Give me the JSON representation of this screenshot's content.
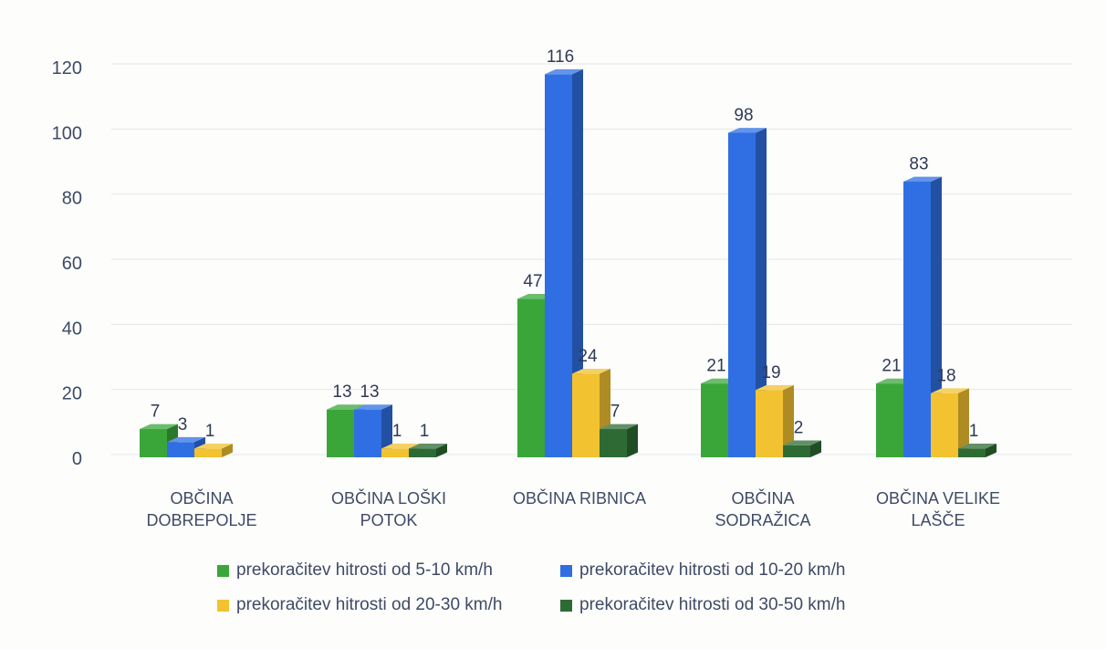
{
  "chart_data": {
    "type": "bar",
    "title": "",
    "xlabel": "",
    "ylabel": "",
    "ylim": [
      0,
      120
    ],
    "yticks": [
      0,
      20,
      40,
      60,
      80,
      100,
      120
    ],
    "grid": true,
    "legend_position": "bottom",
    "categories": [
      [
        "OBČINA",
        "DOBREPOLJE"
      ],
      [
        "OBČINA LOŠKI",
        "POTOK"
      ],
      [
        "OBČINA RIBNICA"
      ],
      [
        "OBČINA",
        "SODRAŽICA"
      ],
      [
        "OBČINA VELIKE",
        "LAŠČE"
      ]
    ],
    "series": [
      {
        "name": "prekoračitev hitrosti od 5-10 km/h",
        "color": "#3aa63a",
        "values": [
          7,
          13,
          47,
          21,
          21
        ]
      },
      {
        "name": "prekoračitev hitrosti od 10-20 km/h",
        "color": "#2f6fe3",
        "values": [
          3,
          13,
          116,
          98,
          83
        ]
      },
      {
        "name": "prekoračitev hitrosti od 20-30 km/h",
        "color": "#f2c230",
        "values": [
          1,
          1,
          24,
          19,
          18
        ]
      },
      {
        "name": "prekoračitev hitrosti od  30-50 km/h",
        "color": "#2e6b34",
        "values": [
          null,
          1,
          7,
          2,
          1
        ]
      }
    ]
  }
}
